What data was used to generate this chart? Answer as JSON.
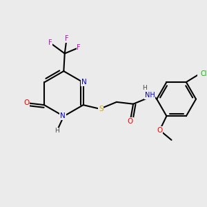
{
  "background_color": "#ebebeb",
  "atom_colors": {
    "N": "#0000cc",
    "O": "#ff0000",
    "S": "#ccaa00",
    "F": "#cc00cc",
    "Cl": "#00bb00",
    "C": "#000000",
    "H": "#444444"
  },
  "bond_color": "#000000",
  "line_width": 1.5
}
